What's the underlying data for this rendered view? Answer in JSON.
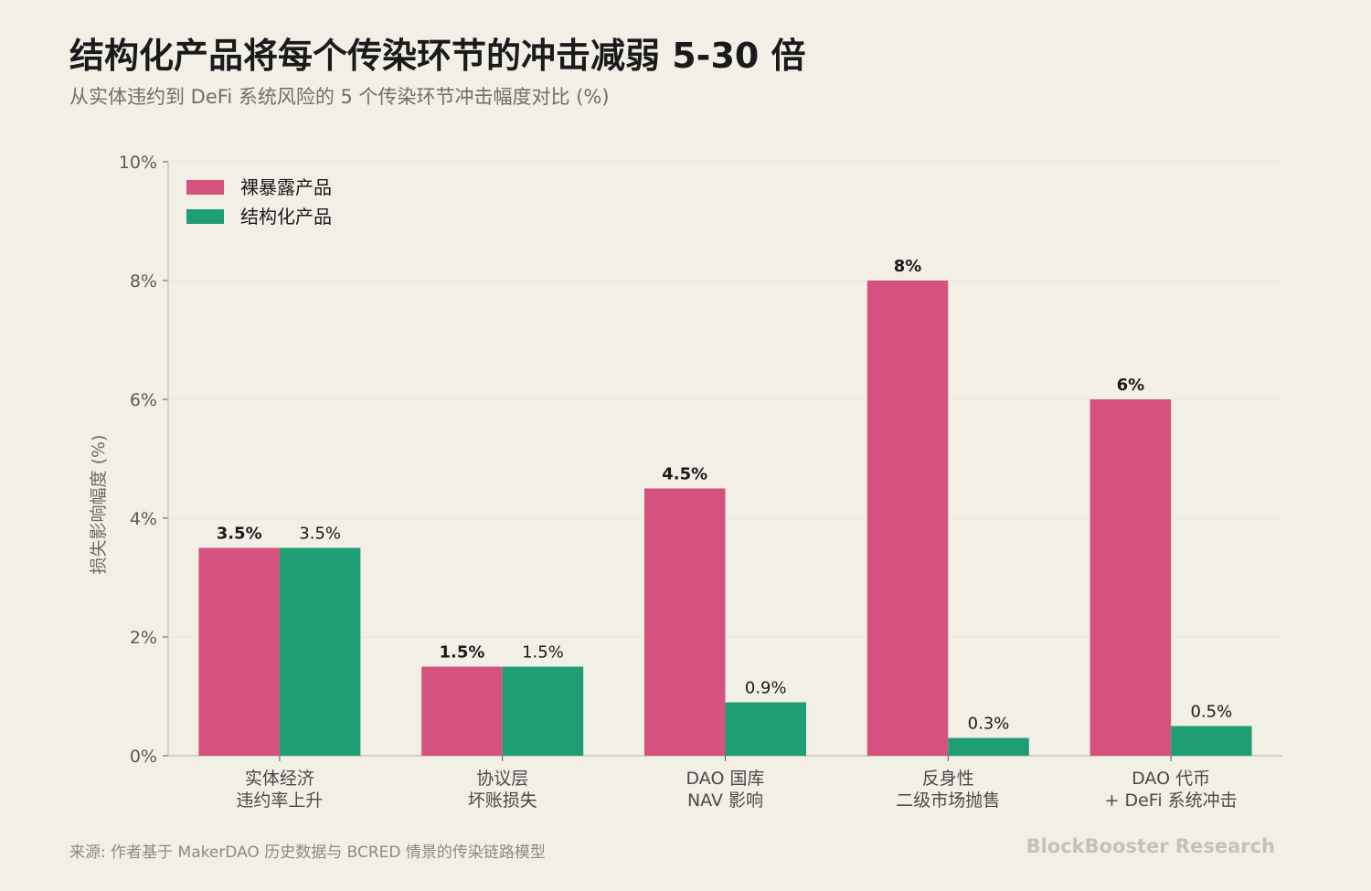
{
  "header": {
    "title": "结构化产品将每个传染环节的冲击减弱 5-30 倍",
    "subtitle": "从实体违约到 DeFi 系统风险的 5 个传染环节冲击幅度对比 (%)"
  },
  "footer": {
    "source": "来源: 作者基于 MakerDAO 历史数据与 BCRED 情景的传染链路模型",
    "brand": "BlockBooster Research"
  },
  "colors": {
    "background": "#f2efe6",
    "series_exposed": "#d4527d",
    "series_structured": "#1f9e74",
    "axis": "#c9c6bb",
    "grid": "#e9e5d6"
  },
  "chart_data": {
    "type": "bar",
    "categories": [
      [
        "实体经济",
        "违约率上升"
      ],
      [
        "协议层",
        "坏账损失"
      ],
      [
        "DAO 国库",
        "NAV 影响"
      ],
      [
        "反身性",
        "二级市场抛售"
      ],
      [
        "DAO 代币",
        "+ DeFi 系统冲击"
      ]
    ],
    "series": [
      {
        "name": "裸暴露产品",
        "values": [
          3.5,
          1.5,
          4.5,
          8,
          6
        ],
        "labels": [
          "3.5%",
          "1.5%",
          "4.5%",
          "8%",
          "6%"
        ]
      },
      {
        "name": "结构化产品",
        "values": [
          3.5,
          1.5,
          0.9,
          0.3,
          0.5
        ],
        "labels": [
          "3.5%",
          "1.5%",
          "0.9%",
          "0.3%",
          "0.5%"
        ]
      }
    ],
    "ylabel": "损失影响幅度 (%)",
    "ylim": [
      0,
      10
    ],
    "yticks": [
      0,
      2,
      4,
      6,
      8,
      10
    ],
    "ytick_labels": [
      "0%",
      "2%",
      "4%",
      "6%",
      "8%",
      "10%"
    ],
    "grid": true,
    "legend_position": "top-left"
  }
}
